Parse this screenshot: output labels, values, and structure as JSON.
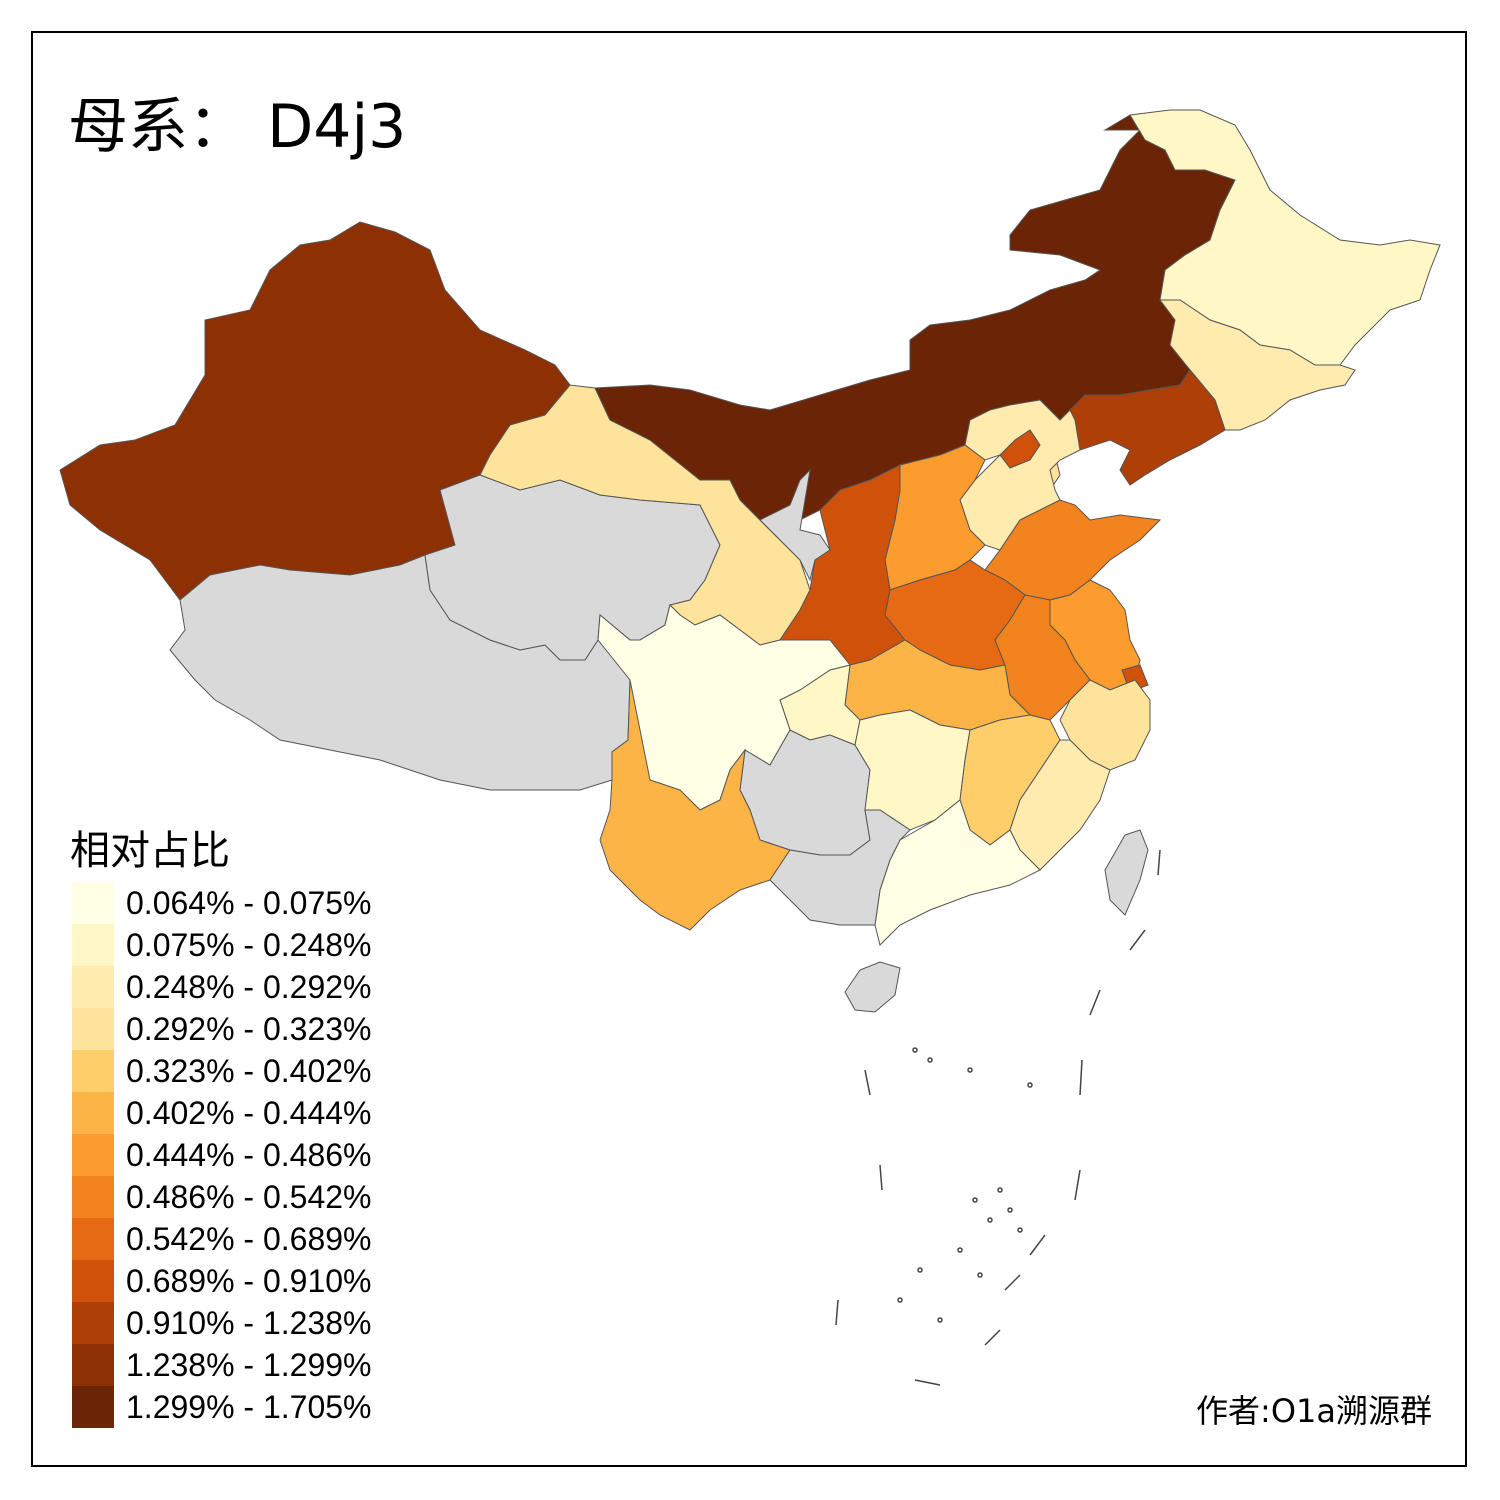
{
  "title": "母系： D4j3",
  "legend_title": "相对占比",
  "author": "作者:O1a溯源群",
  "no_data_color": "#d9d9d9",
  "legend": [
    {
      "label": "0.064% - 0.075%",
      "color": "#ffffe5"
    },
    {
      "label": "0.075% - 0.248%",
      "color": "#fff7c6"
    },
    {
      "label": "0.248% - 0.292%",
      "color": "#ffebae"
    },
    {
      "label": "0.292% - 0.323%",
      "color": "#fee39a"
    },
    {
      "label": "0.323% - 0.402%",
      "color": "#fece6a"
    },
    {
      "label": "0.402% - 0.444%",
      "color": "#fdb446"
    },
    {
      "label": "0.444% - 0.486%",
      "color": "#fc9c2e"
    },
    {
      "label": "0.486% - 0.542%",
      "color": "#f3831f"
    },
    {
      "label": "0.542% - 0.689%",
      "color": "#e66a14"
    },
    {
      "label": "0.689% - 0.910%",
      "color": "#d0520a"
    },
    {
      "label": "0.910% - 1.238%",
      "color": "#ae3f06"
    },
    {
      "label": "1.238% - 1.299%",
      "color": "#8d3105"
    },
    {
      "label": "1.299% - 1.705%",
      "color": "#6b2506"
    }
  ],
  "regions": [
    {
      "name": "Xinjiang",
      "bin": 11
    },
    {
      "name": "Tibet",
      "bin": -1
    },
    {
      "name": "Qinghai",
      "bin": -1
    },
    {
      "name": "Gansu",
      "bin": 3
    },
    {
      "name": "Inner Mongolia",
      "bin": 12
    },
    {
      "name": "Ningxia",
      "bin": -1
    },
    {
      "name": "Heilongjiang",
      "bin": 1
    },
    {
      "name": "Jilin",
      "bin": 2
    },
    {
      "name": "Liaoning",
      "bin": 10
    },
    {
      "name": "Beijing",
      "bin": 9
    },
    {
      "name": "Tianjin",
      "bin": 3
    },
    {
      "name": "Hebei",
      "bin": 2
    },
    {
      "name": "Shanxi",
      "bin": 6
    },
    {
      "name": "Shaanxi",
      "bin": 9
    },
    {
      "name": "Shandong",
      "bin": 7
    },
    {
      "name": "Henan",
      "bin": 8
    },
    {
      "name": "Jiangsu",
      "bin": 6
    },
    {
      "name": "Anhui",
      "bin": 7
    },
    {
      "name": "Shanghai",
      "bin": 9
    },
    {
      "name": "Zhejiang",
      "bin": 3
    },
    {
      "name": "Hubei",
      "bin": 5
    },
    {
      "name": "Chongqing",
      "bin": 1
    },
    {
      "name": "Sichuan",
      "bin": 0
    },
    {
      "name": "Guizhou",
      "bin": -1
    },
    {
      "name": "Yunnan",
      "bin": 5
    },
    {
      "name": "Hunan",
      "bin": 1
    },
    {
      "name": "Jiangxi",
      "bin": 4
    },
    {
      "name": "Fujian",
      "bin": 2
    },
    {
      "name": "Guangdong",
      "bin": 0
    },
    {
      "name": "Guangxi",
      "bin": -1
    },
    {
      "name": "Hainan",
      "bin": -1
    },
    {
      "name": "Taiwan",
      "bin": -1
    }
  ]
}
